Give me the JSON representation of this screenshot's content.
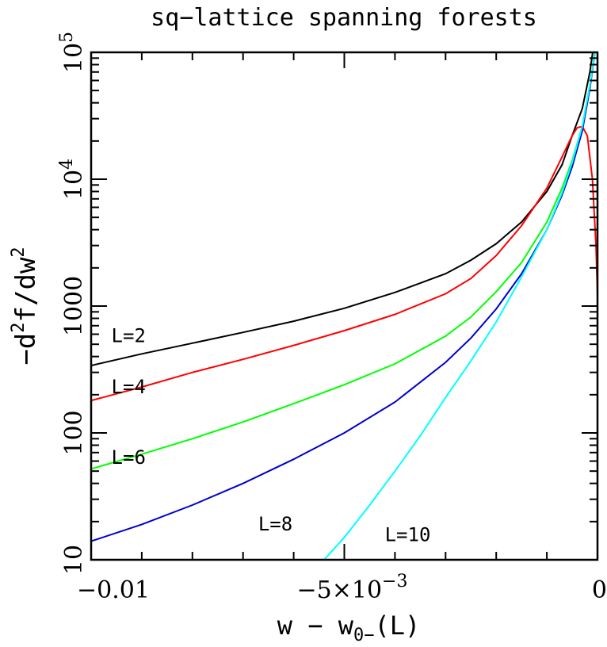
{
  "chart_data": {
    "type": "line",
    "title": "sq−lattice spanning forests",
    "xlabel": {
      "main": "w − w",
      "sub": "0−",
      "tail": "(L)"
    },
    "ylabel": {
      "prefix": "−d",
      "sup1": "2",
      "mid": "f/dw",
      "sup2": "2"
    },
    "xlim": [
      -0.01,
      0
    ],
    "ylim": [
      10,
      100000
    ],
    "yscale": "log",
    "xticks": [
      {
        "value": -0.01,
        "label": "−0.01"
      },
      {
        "value": -0.005,
        "label": "−5×10",
        "sup": "−3"
      },
      {
        "value": 0,
        "label": "0"
      }
    ],
    "yticks": [
      {
        "value": 10,
        "label": "10"
      },
      {
        "value": 100,
        "label": "100"
      },
      {
        "value": 1000,
        "label": "1000"
      },
      {
        "value": 10000,
        "label": "10",
        "sup": "4"
      },
      {
        "value": 100000,
        "label": "10",
        "sup": "5"
      }
    ],
    "series": [
      {
        "name": "L=2",
        "color": "#000000",
        "label_at": {
          "x": -0.0096,
          "y": 520
        },
        "x": [
          -0.01,
          -0.009,
          -0.008,
          -0.007,
          -0.006,
          -0.005,
          -0.004,
          -0.003,
          -0.0025,
          -0.002,
          -0.0015,
          -0.001,
          -0.0007,
          -0.0005,
          -0.0003,
          -0.00015,
          -8e-05
        ],
        "y": [
          340,
          420,
          510,
          620,
          760,
          960,
          1280,
          1800,
          2300,
          3100,
          4600,
          8000,
          13000,
          22000,
          36000,
          70000,
          110000
        ]
      },
      {
        "name": "L=4",
        "color": "#ff0000",
        "label_at": {
          "x": -0.0096,
          "y": 205
        },
        "x": [
          -0.01,
          -0.009,
          -0.008,
          -0.007,
          -0.006,
          -0.005,
          -0.004,
          -0.003,
          -0.0025,
          -0.002,
          -0.0015,
          -0.001,
          -0.0007,
          -0.0005,
          -0.0004,
          -0.0003,
          -0.0002,
          -0.0001,
          -3e-05,
          0
        ],
        "y": [
          180,
          230,
          300,
          380,
          490,
          640,
          860,
          1250,
          1650,
          2500,
          4300,
          8500,
          15000,
          22000,
          25500,
          26000,
          22000,
          10000,
          3000,
          1200
        ]
      },
      {
        "name": "L=6",
        "color": "#00ff00",
        "label_at": {
          "x": -0.0096,
          "y": 57
        },
        "x": [
          -0.01,
          -0.009,
          -0.008,
          -0.007,
          -0.006,
          -0.005,
          -0.004,
          -0.003,
          -0.0025,
          -0.002,
          -0.0015,
          -0.001,
          -0.0007,
          -0.0005,
          -0.0003,
          -0.00015,
          -5e-05
        ],
        "y": [
          52,
          68,
          90,
          122,
          170,
          240,
          350,
          580,
          820,
          1300,
          2200,
          4600,
          8500,
          14000,
          26000,
          55000,
          100000
        ]
      },
      {
        "name": "L=8",
        "color": "#0000cd",
        "label_at": {
          "x": -0.0067,
          "y": 17
        },
        "x": [
          -0.01,
          -0.009,
          -0.008,
          -0.007,
          -0.006,
          -0.005,
          -0.004,
          -0.003,
          -0.0025,
          -0.002,
          -0.0015,
          -0.001,
          -0.0007,
          -0.0005,
          -0.0003,
          -0.00015,
          -5e-05
        ],
        "y": [
          14,
          19,
          27,
          40,
          62,
          100,
          175,
          360,
          560,
          950,
          1800,
          4000,
          7500,
          12500,
          24000,
          52000,
          100000
        ]
      },
      {
        "name": "L=10",
        "color": "#00ffff",
        "label_at": {
          "x": -0.0042,
          "y": 14
        },
        "x": [
          -0.0054,
          -0.005,
          -0.0045,
          -0.004,
          -0.0035,
          -0.003,
          -0.0025,
          -0.002,
          -0.0015,
          -0.001,
          -0.0007,
          -0.0005,
          -0.0003,
          -0.00015,
          -5e-05
        ],
        "y": [
          10,
          15,
          27,
          50,
          95,
          190,
          370,
          750,
          1700,
          4000,
          7800,
          13500,
          26000,
          55000,
          100000
        ]
      }
    ]
  }
}
